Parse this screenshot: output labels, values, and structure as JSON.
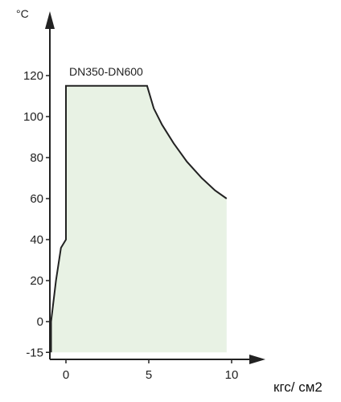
{
  "chart_data": {
    "type": "area",
    "series": [
      {
        "name": "DN350-DN600",
        "points": [
          [
            -0.9,
            -15
          ],
          [
            -0.9,
            0
          ],
          [
            -0.6,
            20
          ],
          [
            -0.3,
            36
          ],
          [
            0,
            40
          ],
          [
            0,
            115
          ],
          [
            4.9,
            115
          ],
          [
            5.3,
            104
          ],
          [
            5.8,
            96
          ],
          [
            6.5,
            87
          ],
          [
            7.3,
            78
          ],
          [
            8.2,
            70
          ],
          [
            9.0,
            64
          ],
          [
            9.7,
            60
          ],
          [
            9.7,
            -15
          ]
        ]
      }
    ],
    "x_ticks": [
      0,
      5,
      10
    ],
    "y_ticks": [
      -15,
      0,
      20,
      40,
      60,
      80,
      100,
      120
    ],
    "xlim": [
      -1.0,
      11.5
    ],
    "ylim": [
      -24,
      155
    ],
    "xlabel": "кгс/ см2",
    "ylabel": "°C",
    "fill_color": "#e8f2e4",
    "line_color": "#222222",
    "grid": false
  }
}
